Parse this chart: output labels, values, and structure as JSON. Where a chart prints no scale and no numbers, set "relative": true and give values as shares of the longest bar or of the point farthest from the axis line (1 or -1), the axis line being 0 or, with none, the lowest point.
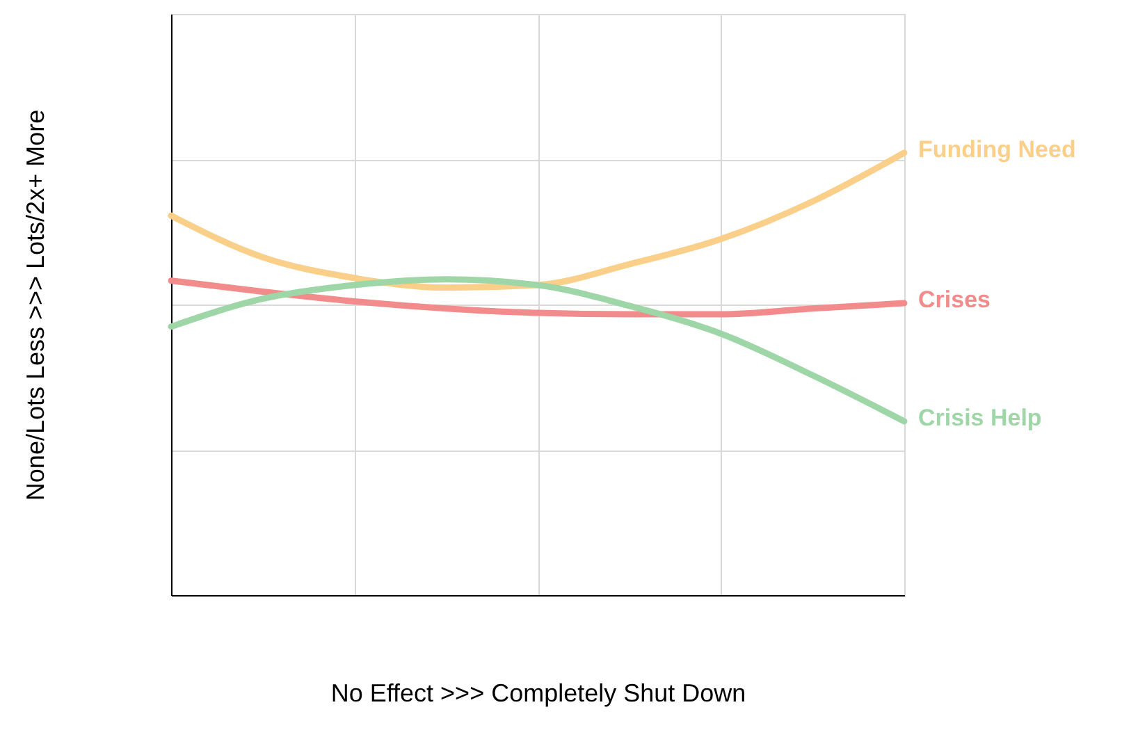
{
  "chart_data": {
    "type": "line",
    "relative": true,
    "xlabel": "No Effect >>> Completely Shut Down",
    "ylabel": "None/Lots Less >>> Lots/2x+ More",
    "categories": [
      null,
      null,
      null,
      null,
      null,
      null,
      null,
      null,
      null
    ],
    "series": [
      {
        "name": "Funding Need",
        "color": "#f9cf8a",
        "values": [
          0.858,
          0.764,
          0.717,
          0.695,
          0.701,
          0.748,
          0.805,
          0.89,
          1
        ]
      },
      {
        "name": "Crises",
        "color": "#f28b8b",
        "values": [
          0.711,
          0.686,
          0.664,
          0.648,
          0.638,
          0.635,
          0.635,
          0.648,
          0.66
        ]
      },
      {
        "name": "Crisis Help",
        "color": "#9fd6a8",
        "values": [
          0.607,
          0.67,
          0.701,
          0.714,
          0.701,
          0.654,
          0.591,
          0.497,
          0.393
        ]
      }
    ],
    "grid": true,
    "marker": "none",
    "line_style": "solid"
  }
}
